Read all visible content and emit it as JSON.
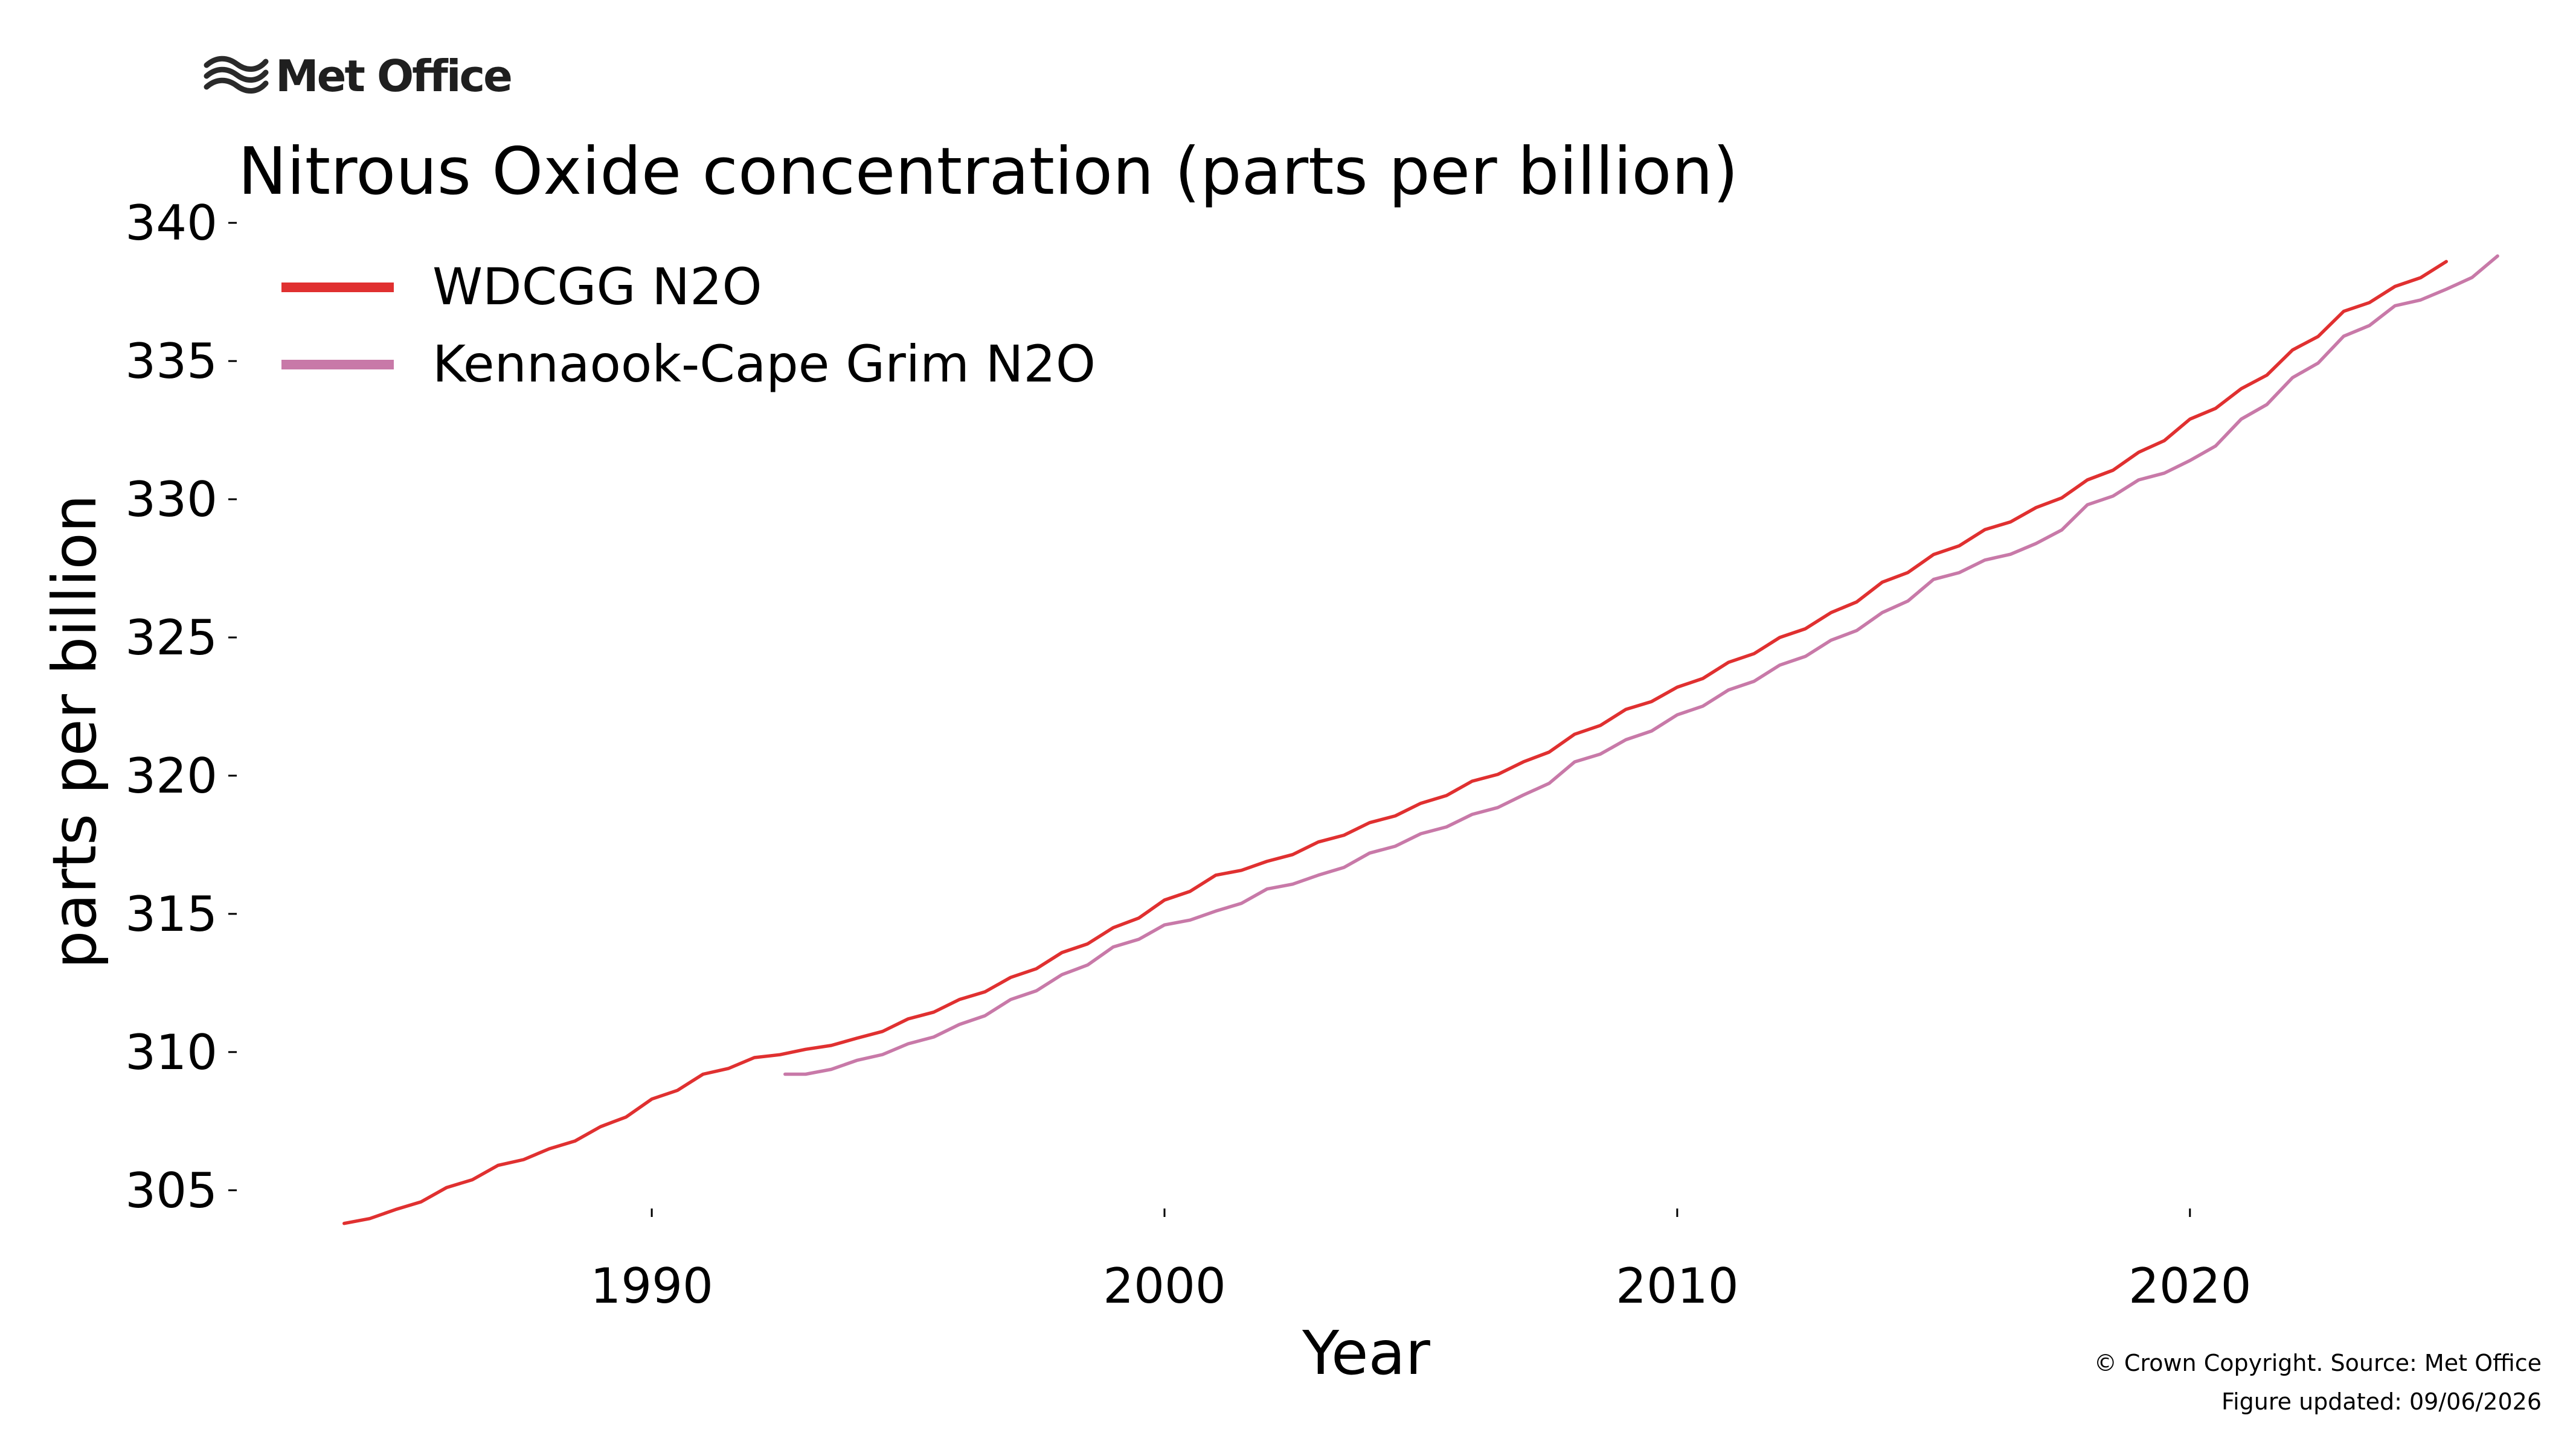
{
  "brand": {
    "name": "Met Office",
    "logo_icon": "met-office-wave-icon"
  },
  "footer": {
    "copyright": "© Crown Copyright. Source: Met Office",
    "updated": "Figure updated: 09/06/2026"
  },
  "chart_data": {
    "type": "line",
    "title": "Nitrous Oxide concentration (parts per billion)",
    "xlabel": "Year",
    "ylabel": "parts per billion",
    "xlim": [
      1982,
      2027
    ],
    "ylim": [
      302.2,
      340.2
    ],
    "x_ticks": [
      1990,
      2000,
      2010,
      2020
    ],
    "y_ticks": [
      305,
      310,
      315,
      320,
      325,
      330,
      335,
      340
    ],
    "grid": false,
    "legend": "top-left",
    "series": [
      {
        "name": "WDCGG N2O",
        "color": "#e03030",
        "x": [
          1984.0,
          1985.0,
          1986.0,
          1987.0,
          1988.0,
          1989.0,
          1990.0,
          1991.0,
          1992.0,
          1993.0,
          1994.0,
          1995.0,
          1996.0,
          1997.0,
          1998.0,
          1999.0,
          2000.0,
          2001.0,
          2002.0,
          2003.0,
          2004.0,
          2005.0,
          2006.0,
          2007.0,
          2008.0,
          2009.0,
          2010.0,
          2011.0,
          2012.0,
          2013.0,
          2014.0,
          2015.0,
          2016.0,
          2017.0,
          2018.0,
          2019.0,
          2020.0,
          2021.0,
          2022.0,
          2023.0,
          2024.0,
          2025.0
        ],
        "y": [
          303.8,
          304.3,
          305.1,
          305.9,
          306.5,
          307.3,
          308.3,
          309.2,
          309.8,
          310.1,
          310.5,
          311.2,
          311.9,
          312.7,
          313.6,
          314.5,
          315.5,
          316.4,
          316.9,
          317.6,
          318.3,
          319.0,
          319.8,
          320.5,
          321.5,
          322.4,
          323.2,
          324.1,
          325.0,
          325.9,
          327.0,
          328.0,
          328.9,
          329.7,
          330.7,
          331.7,
          332.9,
          334.0,
          335.4,
          336.8,
          337.7,
          338.6
        ]
      },
      {
        "name": "Kennaook-Cape Grim N2O",
        "color": "#c879a8",
        "x": [
          1992.6,
          1993.0,
          1994.0,
          1995.0,
          1996.0,
          1997.0,
          1998.0,
          1999.0,
          2000.0,
          2001.0,
          2002.0,
          2003.0,
          2004.0,
          2005.0,
          2006.0,
          2007.0,
          2008.0,
          2009.0,
          2010.0,
          2011.0,
          2012.0,
          2013.0,
          2014.0,
          2015.0,
          2016.0,
          2017.0,
          2018.0,
          2019.0,
          2020.0,
          2021.0,
          2022.0,
          2023.0,
          2024.0,
          2025.0,
          2026.0
        ],
        "y": [
          309.2,
          309.2,
          309.7,
          310.3,
          311.0,
          311.9,
          312.8,
          313.8,
          314.6,
          315.1,
          315.9,
          316.4,
          317.2,
          317.9,
          318.6,
          319.3,
          320.5,
          321.3,
          322.2,
          323.1,
          324.0,
          324.9,
          325.9,
          327.1,
          327.8,
          328.4,
          329.8,
          330.7,
          331.4,
          332.9,
          334.4,
          335.9,
          337.0,
          337.6,
          338.8
        ]
      }
    ]
  }
}
